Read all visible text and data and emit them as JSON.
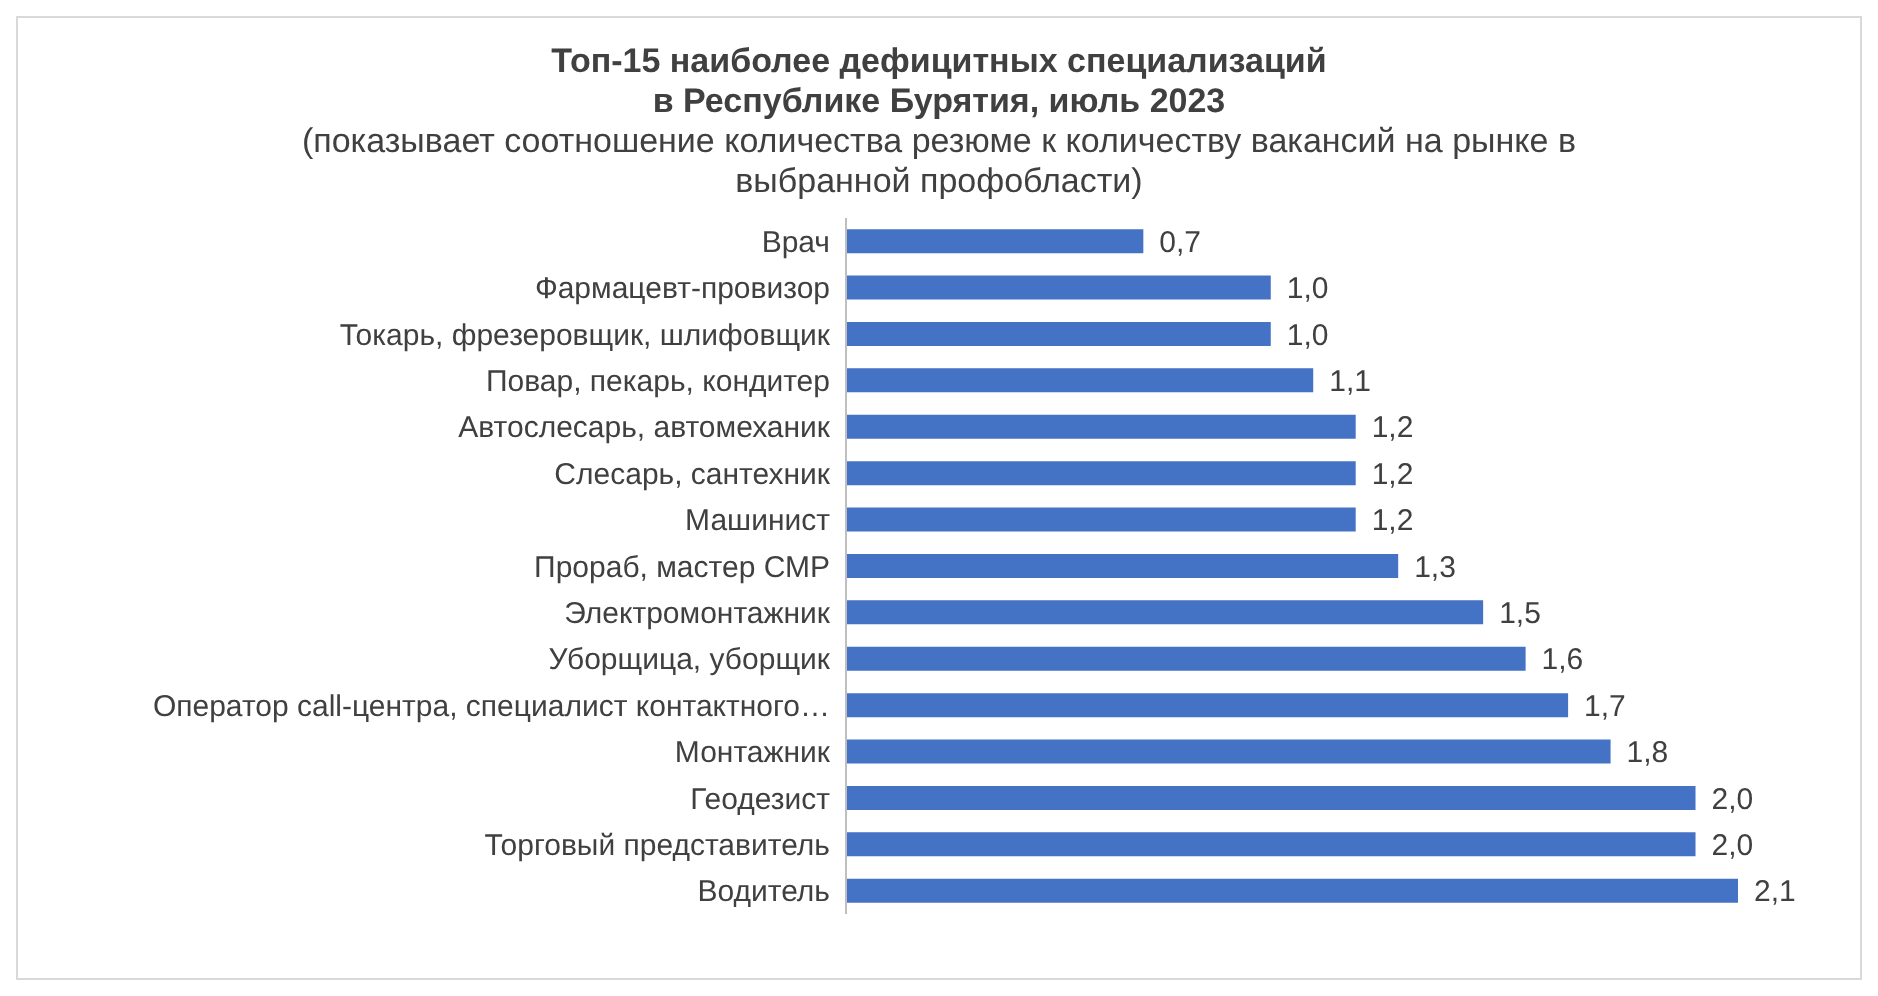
{
  "chart_data": {
    "type": "bar",
    "orientation": "horizontal",
    "title": "Топ-15 наиболее дефицитных специализаций\nв Республике Бурятия, июль 2023",
    "subtitle": "(показывает соотношение количества резюме к количеству вакансий на рынке в выбранной профобласти)",
    "categories": [
      "Врач",
      "Фармацевт-провизор",
      "Токарь, фрезеровщик, шлифовщик",
      "Повар, пекарь, кондитер",
      "Автослесарь, автомеханик",
      "Слесарь, сантехник",
      "Машинист",
      "Прораб, мастер СМР",
      "Электромонтажник",
      "Уборщица, уборщик",
      "Оператор call-центра, специалист контактного…",
      "Монтажник",
      "Геодезист",
      "Торговый представитель",
      "Водитель"
    ],
    "values": [
      0.7,
      1.0,
      1.0,
      1.1,
      1.2,
      1.2,
      1.2,
      1.3,
      1.5,
      1.6,
      1.7,
      1.8,
      2.0,
      2.0,
      2.1
    ],
    "value_labels": [
      "0,7",
      "1,0",
      "1,0",
      "1,1",
      "1,2",
      "1,2",
      "1,2",
      "1,3",
      "1,5",
      "1,6",
      "1,7",
      "1,8",
      "2,0",
      "2,0",
      "2,1"
    ],
    "color": "#4472c4"
  }
}
